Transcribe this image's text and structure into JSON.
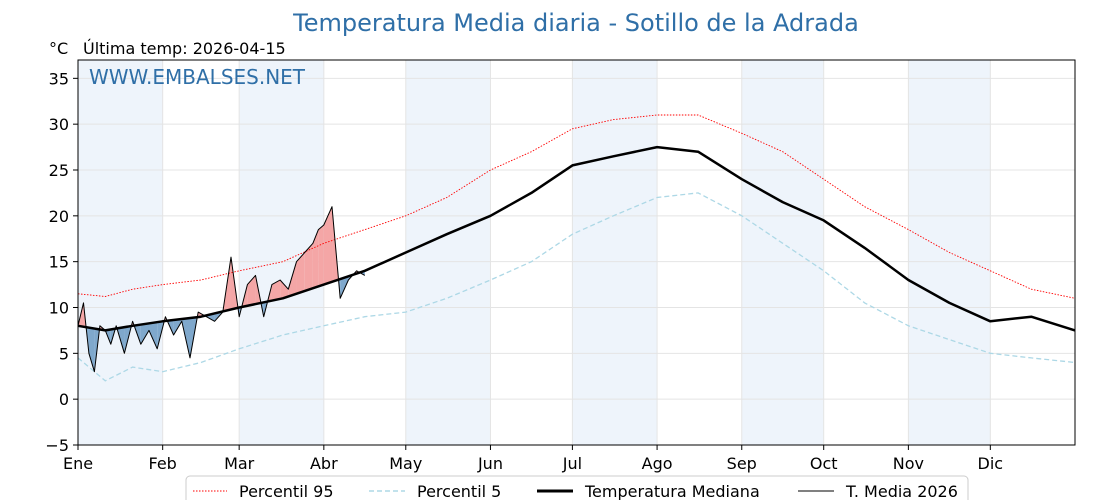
{
  "chart_data": {
    "type": "line",
    "title": "Temperatura Media diaria - Sotillo de la Adrada",
    "unit_label": "°C",
    "last_temp_label": "Última temp: 2026-04-15",
    "watermark": "WWW.EMBALSES.NET",
    "xlabel": "",
    "ylabel": "",
    "ylim": [
      -5,
      37
    ],
    "xlim": [
      0,
      365
    ],
    "y_ticks": [
      -5,
      0,
      5,
      10,
      15,
      20,
      25,
      30,
      35
    ],
    "y_tick_labels": [
      "−5",
      "0",
      "5",
      "10",
      "15",
      "20",
      "25",
      "30",
      "35"
    ],
    "month_starts": [
      0,
      31,
      59,
      90,
      120,
      151,
      181,
      212,
      243,
      273,
      304,
      334
    ],
    "month_labels": [
      "Ene",
      "Feb",
      "Mar",
      "Abr",
      "May",
      "Jun",
      "Jul",
      "Ago",
      "Sep",
      "Oct",
      "Nov",
      "Dic"
    ],
    "shaded_months": [
      0,
      2,
      4,
      6,
      8,
      10
    ],
    "grid": true,
    "legend_position": "bottom",
    "colors": {
      "p95": "#ff0000",
      "p5": "#add8e6",
      "median": "#000000",
      "current": "#000000",
      "above_fill": "#f4a6a6",
      "below_fill": "#7fa8cc",
      "shade": "#eef4fb",
      "title": "#2f6fa7"
    },
    "series": [
      {
        "name": "Percentil 95",
        "style": "dotted-red",
        "x": [
          0,
          10,
          20,
          31,
          45,
          59,
          75,
          90,
          105,
          120,
          135,
          151,
          166,
          181,
          196,
          212,
          227,
          243,
          258,
          273,
          288,
          304,
          319,
          334,
          349,
          365
        ],
        "y": [
          11.5,
          11.2,
          12.0,
          12.5,
          13.0,
          14.0,
          15.0,
          17.0,
          18.5,
          20.0,
          22.0,
          25.0,
          27.0,
          29.5,
          30.5,
          31.0,
          31.0,
          29.0,
          27.0,
          24.0,
          21.0,
          18.5,
          16.0,
          14.0,
          12.0,
          11.0
        ]
      },
      {
        "name": "Percentil 5",
        "style": "dashed-lightblue",
        "x": [
          0,
          10,
          20,
          31,
          45,
          59,
          75,
          90,
          105,
          120,
          135,
          151,
          166,
          181,
          196,
          212,
          227,
          243,
          258,
          273,
          288,
          304,
          319,
          334,
          349,
          365
        ],
        "y": [
          4.5,
          2.0,
          3.5,
          3.0,
          4.0,
          5.5,
          7.0,
          8.0,
          9.0,
          9.5,
          11.0,
          13.0,
          15.0,
          18.0,
          20.0,
          22.0,
          22.5,
          20.0,
          17.0,
          14.0,
          10.5,
          8.0,
          6.5,
          5.0,
          4.5,
          4.0
        ]
      },
      {
        "name": "Temperatura Mediana",
        "style": "thick-black",
        "x": [
          0,
          10,
          20,
          31,
          45,
          59,
          75,
          90,
          105,
          120,
          135,
          151,
          166,
          181,
          196,
          212,
          227,
          243,
          258,
          273,
          288,
          304,
          319,
          334,
          349,
          365
        ],
        "y": [
          8.0,
          7.5,
          8.0,
          8.5,
          9.0,
          10.0,
          11.0,
          12.5,
          14.0,
          16.0,
          18.0,
          20.0,
          22.5,
          25.5,
          26.5,
          27.5,
          27.0,
          24.0,
          21.5,
          19.5,
          16.5,
          13.0,
          10.5,
          8.5,
          9.0,
          7.5
        ]
      },
      {
        "name": "T. Media 2026",
        "style": "thin-black",
        "x": [
          0,
          2,
          4,
          6,
          8,
          10,
          12,
          14,
          17,
          20,
          23,
          26,
          29,
          32,
          35,
          38,
          41,
          44,
          47,
          50,
          53,
          56,
          59,
          62,
          65,
          68,
          71,
          74,
          77,
          80,
          83,
          86,
          88,
          90,
          93,
          96,
          99,
          102,
          105
        ],
        "y": [
          8.0,
          10.5,
          5.0,
          3.0,
          8.0,
          7.5,
          6.0,
          8.0,
          5.0,
          8.5,
          6.0,
          7.5,
          5.5,
          9.0,
          7.0,
          8.5,
          4.5,
          9.5,
          9.0,
          8.5,
          9.5,
          15.5,
          9.0,
          12.5,
          13.5,
          9.0,
          12.5,
          13.0,
          12.0,
          15.0,
          16.0,
          17.0,
          18.5,
          19.0,
          21.0,
          11.0,
          13.0,
          14.0,
          13.5
        ]
      }
    ]
  },
  "legend": {
    "p95_label": "Percentil 95",
    "p5_label": "Percentil 5",
    "median_label": "Temperatura Mediana",
    "current_label": "T. Media 2026"
  }
}
